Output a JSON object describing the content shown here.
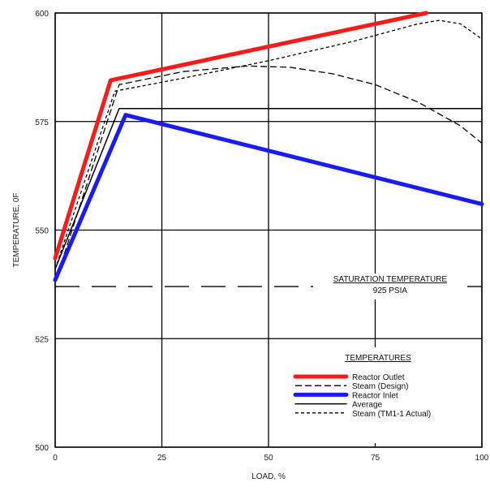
{
  "chart_data": {
    "type": "line",
    "xlabel": "LOAD, %",
    "ylabel": "TEMPERATURE, 0F",
    "xlim": [
      0,
      100
    ],
    "ylim": [
      500,
      600
    ],
    "xticks": [
      0,
      25,
      50,
      75,
      100
    ],
    "yticks": [
      500,
      525,
      550,
      575,
      600
    ],
    "grid": true,
    "annotation": {
      "line1": "SATURATION TEMPERATURE",
      "line2": "925 PSIA",
      "value": 537
    },
    "legend": {
      "title": "TEMPERATURES",
      "position": "bottom-right"
    },
    "series": [
      {
        "name": "Reactor Outlet",
        "style": "thick",
        "color": "#ff1a1a",
        "x": [
          0,
          13,
          87
        ],
        "y": [
          543.5,
          584.5,
          600
        ]
      },
      {
        "name": "Steam (Design)",
        "style": "dashed",
        "color": "#000000",
        "x": [
          0,
          15,
          30,
          45,
          55,
          65,
          75,
          85,
          95,
          100
        ],
        "y": [
          538,
          583.5,
          586.5,
          587.8,
          587.5,
          586,
          583.5,
          579.5,
          574,
          570
        ]
      },
      {
        "name": "Reactor Inlet",
        "style": "thick",
        "color": "#1a1aff",
        "x": [
          0,
          16.5,
          100
        ],
        "y": [
          538.5,
          576.5,
          556
        ]
      },
      {
        "name": "Average",
        "style": "solid",
        "color": "#000000",
        "x": [
          0,
          15,
          100
        ],
        "y": [
          541,
          578,
          578
        ]
      },
      {
        "name": "Steam (TM1-1 Actual)",
        "style": "shortdash",
        "color": "#000000",
        "x": [
          0,
          14,
          30,
          50,
          70,
          85,
          90,
          95,
          100
        ],
        "y": [
          541,
          582,
          585,
          589,
          593.5,
          597.5,
          598.3,
          597.5,
          594
        ]
      }
    ]
  }
}
